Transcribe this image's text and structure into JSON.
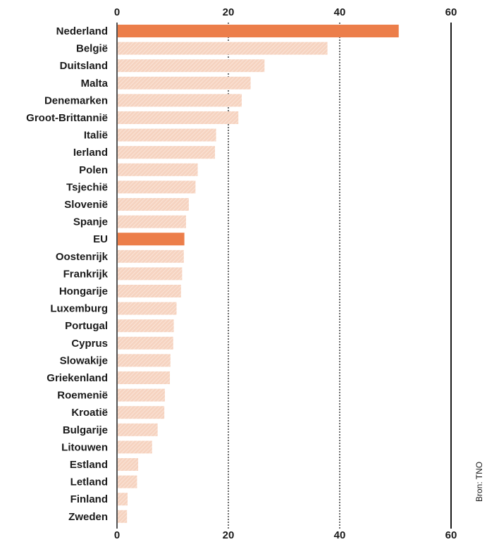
{
  "chart_data": {
    "type": "bar",
    "orientation": "horizontal",
    "categories": [
      "Nederland",
      "België",
      "Duitsland",
      "Malta",
      "Denemarken",
      "Groot-Brittannië",
      "Italië",
      "Ierland",
      "Polen",
      "Tsjechië",
      "Slovenië",
      "Spanje",
      "EU",
      "Oostenrijk",
      "Frankrijk",
      "Hongarije",
      "Luxemburg",
      "Portugal",
      "Cyprus",
      "Slowakije",
      "Griekenland",
      "Roemenië",
      "Kroatië",
      "Bulgarije",
      "Litouwen",
      "Estland",
      "Letland",
      "Finland",
      "Zweden"
    ],
    "values": [
      50.6,
      37.8,
      26.5,
      24.0,
      22.4,
      21.8,
      17.8,
      17.6,
      14.5,
      14.1,
      12.9,
      12.4,
      12.1,
      12.0,
      11.7,
      11.5,
      10.7,
      10.2,
      10.1,
      9.6,
      9.5,
      8.6,
      8.5,
      7.3,
      6.3,
      3.8,
      3.6,
      1.9,
      1.8
    ],
    "highlighted": [
      "Nederland",
      "EU"
    ],
    "xlim": [
      0,
      60
    ],
    "xticks": [
      "0",
      "20",
      "40",
      "60"
    ],
    "dotted_gridlines_at": [
      20,
      40
    ],
    "solid_line_at": 60,
    "colors": {
      "highlight": "#ec7e4a",
      "bar": "#f6d3c0",
      "hatch": "#fbe9df"
    },
    "source": "Bron: TNO"
  }
}
